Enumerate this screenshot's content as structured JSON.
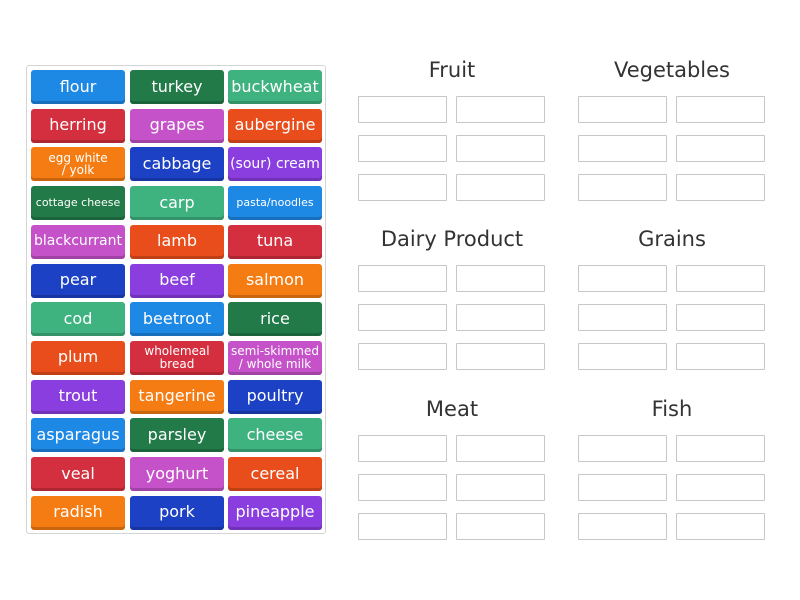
{
  "tiles": [
    {
      "label": "flour",
      "color": "#1e88e5"
    },
    {
      "label": "turkey",
      "color": "#217a48"
    },
    {
      "label": "buckwheat",
      "color": "#3fb37f"
    },
    {
      "label": "herring",
      "color": "#d32f3e"
    },
    {
      "label": "grapes",
      "color": "#c552c9"
    },
    {
      "label": "aubergine",
      "color": "#e94d1b"
    },
    {
      "label": "egg white\n/ yolk",
      "color": "#f57c12"
    },
    {
      "label": "cabbage",
      "color": "#1c41c4"
    },
    {
      "label": "(sour) cream",
      "color": "#8a3ee0"
    },
    {
      "label": "cottage cheese",
      "color": "#217a48"
    },
    {
      "label": "carp",
      "color": "#3fb37f"
    },
    {
      "label": "pasta/noodles",
      "color": "#1e88e5"
    },
    {
      "label": "blackcurrant",
      "color": "#c552c9"
    },
    {
      "label": "lamb",
      "color": "#e94d1b"
    },
    {
      "label": "tuna",
      "color": "#d32f3e"
    },
    {
      "label": "pear",
      "color": "#1c41c4"
    },
    {
      "label": "beef",
      "color": "#8a3ee0"
    },
    {
      "label": "salmon",
      "color": "#f57c12"
    },
    {
      "label": "cod",
      "color": "#3fb37f"
    },
    {
      "label": "beetroot",
      "color": "#1e88e5"
    },
    {
      "label": "rice",
      "color": "#217a48"
    },
    {
      "label": "plum",
      "color": "#e94d1b"
    },
    {
      "label": "wholemeal\nbread",
      "color": "#d32f3e"
    },
    {
      "label": "semi-skimmed\n/ whole milk",
      "color": "#c552c9"
    },
    {
      "label": "trout",
      "color": "#8a3ee0"
    },
    {
      "label": "tangerine",
      "color": "#f57c12"
    },
    {
      "label": "poultry",
      "color": "#1c41c4"
    },
    {
      "label": "asparagus",
      "color": "#1e88e5"
    },
    {
      "label": "parsley",
      "color": "#217a48"
    },
    {
      "label": "cheese",
      "color": "#3fb37f"
    },
    {
      "label": "veal",
      "color": "#d32f3e"
    },
    {
      "label": "yoghurt",
      "color": "#c552c9"
    },
    {
      "label": "cereal",
      "color": "#e94d1b"
    },
    {
      "label": "radish",
      "color": "#f57c12"
    },
    {
      "label": "pork",
      "color": "#1c41c4"
    },
    {
      "label": "pineapple",
      "color": "#8a3ee0"
    }
  ],
  "groups": [
    {
      "title": "Fruit"
    },
    {
      "title": "Vegetables"
    },
    {
      "title": "Dairy Product"
    },
    {
      "title": "Grains"
    },
    {
      "title": "Meat"
    },
    {
      "title": "Fish"
    }
  ]
}
